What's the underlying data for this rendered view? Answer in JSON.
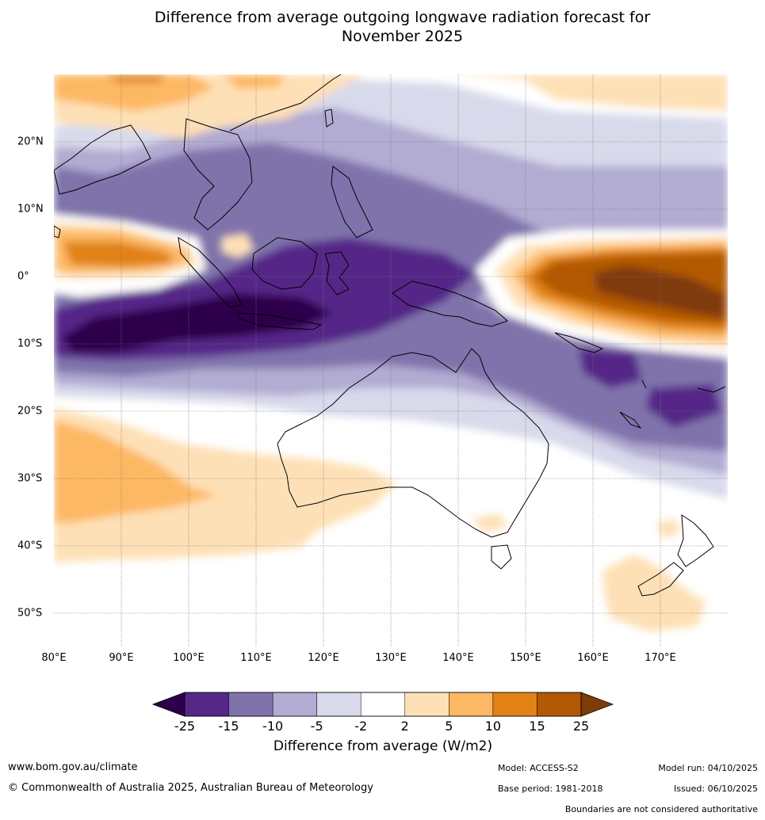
{
  "title_line1": "Difference from average outgoing longwave radiation forecast for",
  "title_line2": "November 2025",
  "map": {
    "region": "Indo-Pacific and Australia",
    "lon_range": [
      80,
      180
    ],
    "lat_range": [
      -55,
      30
    ],
    "lon_ticks": [
      {
        "value": 80,
        "label": "80°E"
      },
      {
        "value": 90,
        "label": "90°E"
      },
      {
        "value": 100,
        "label": "100°E"
      },
      {
        "value": 110,
        "label": "110°E"
      },
      {
        "value": 120,
        "label": "120°E"
      },
      {
        "value": 130,
        "label": "130°E"
      },
      {
        "value": 140,
        "label": "140°E"
      },
      {
        "value": 150,
        "label": "150°E"
      },
      {
        "value": 160,
        "label": "160°E"
      },
      {
        "value": 170,
        "label": "170°E"
      }
    ],
    "lat_ticks": [
      {
        "value": 20,
        "label": "20°N"
      },
      {
        "value": 10,
        "label": "10°N"
      },
      {
        "value": 0,
        "label": "0°"
      },
      {
        "value": -10,
        "label": "10°S"
      },
      {
        "value": -20,
        "label": "20°S"
      },
      {
        "value": -30,
        "label": "30°S"
      },
      {
        "value": -40,
        "label": "40°S"
      },
      {
        "value": -50,
        "label": "50°S"
      }
    ]
  },
  "colorbar": {
    "ticks": [
      "-25",
      "-15",
      "-10",
      "-5",
      "-2",
      "2",
      "5",
      "10",
      "15",
      "25"
    ],
    "colors": [
      "#2d004b",
      "#542788",
      "#8073ac",
      "#b2abd2",
      "#d8daeb",
      "#ffffff",
      "#fee0b6",
      "#fdb863",
      "#e08214",
      "#b35806",
      "#7f3b08"
    ],
    "label": "Difference from average (W/m2)"
  },
  "footer": {
    "website": "www.bom.gov.au/climate",
    "copyright": "© Commonwealth of Australia 2025, Australian Bureau of Meteorology",
    "model": "Model: ACCESS-S2",
    "base_period": "Base period: 1981-2018",
    "model_run": "Model run: 04/10/2025",
    "issued": "Issued: 06/10/2025",
    "disclaimer": "Boundaries are not considered authoritative"
  }
}
